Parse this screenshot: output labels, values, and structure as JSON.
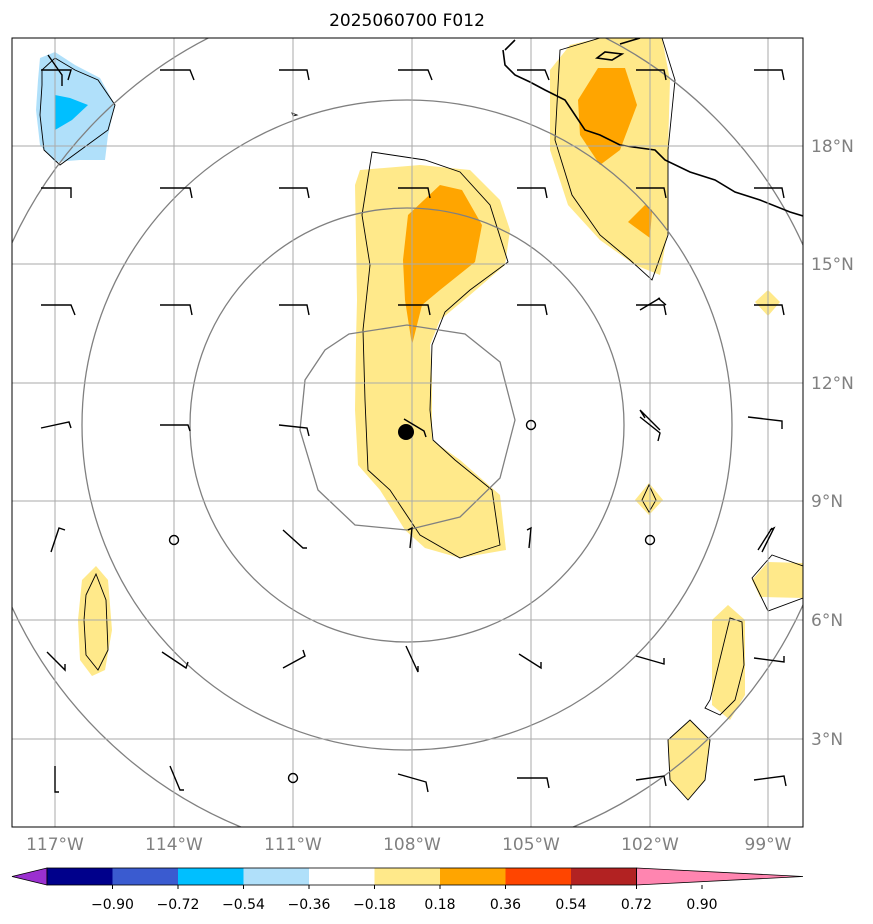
{
  "title": "2025060700 F012",
  "lat_labels": [
    "18°N",
    "15°N",
    "12°N",
    "9°N",
    "6°N",
    "3°N"
  ],
  "lon_labels": [
    "117°W",
    "114°W",
    "111°W",
    "108°W",
    "105°W",
    "102°W",
    "99°W"
  ],
  "colorbar": {
    "tick_labels": [
      "−0.90",
      "−0.72",
      "−0.54",
      "−0.36",
      "−0.18",
      "0.18",
      "0.36",
      "0.54",
      "0.72",
      "0.90"
    ],
    "colors": [
      "#9b30d0",
      "#00008b",
      "#3a5bd0",
      "#00bfff",
      "#b0e0fa",
      "#ffffff",
      "#ffe98a",
      "#ffa500",
      "#ff4500",
      "#b22222",
      "#ff85b0"
    ]
  },
  "colors": {
    "grid": "#aaaaaa",
    "range_rings": "#808080",
    "coastline": "#000000"
  },
  "storm_center": {
    "lat": 10.8,
    "lon": -108.1
  }
}
